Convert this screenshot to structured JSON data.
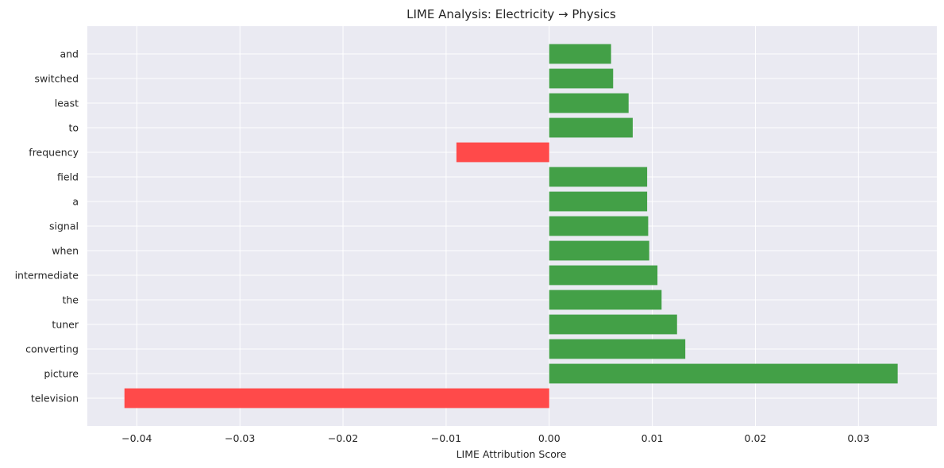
{
  "chart_data": {
    "type": "bar",
    "orientation": "horizontal",
    "title": "LIME Analysis: Electricity → Physics",
    "xlabel": "LIME Attribution Score",
    "ylabel": "",
    "categories": [
      "television",
      "picture",
      "converting",
      "tuner",
      "the",
      "intermediate",
      "when",
      "signal",
      "a",
      "field",
      "frequency",
      "to",
      "least",
      "switched",
      "and"
    ],
    "values": [
      -0.0412,
      0.0338,
      0.0132,
      0.0124,
      0.0109,
      0.0105,
      0.0097,
      0.0096,
      0.0095,
      0.0095,
      -0.009,
      0.0081,
      0.0077,
      0.0062,
      0.006
    ],
    "xlim": [
      -0.0448,
      0.0376
    ],
    "xticks": [
      -0.04,
      -0.03,
      -0.02,
      -0.01,
      0.0,
      0.01,
      0.02,
      0.03
    ],
    "xtick_labels": [
      "−0.04",
      "−0.03",
      "−0.02",
      "−0.01",
      "0.00",
      "0.01",
      "0.02",
      "0.03"
    ],
    "grid": true,
    "colors": {
      "positive": "#43a047",
      "negative": "#ff4a4a",
      "plot_background": "#eaeaf2",
      "grid": "#ffffff",
      "text": "#262626"
    }
  }
}
